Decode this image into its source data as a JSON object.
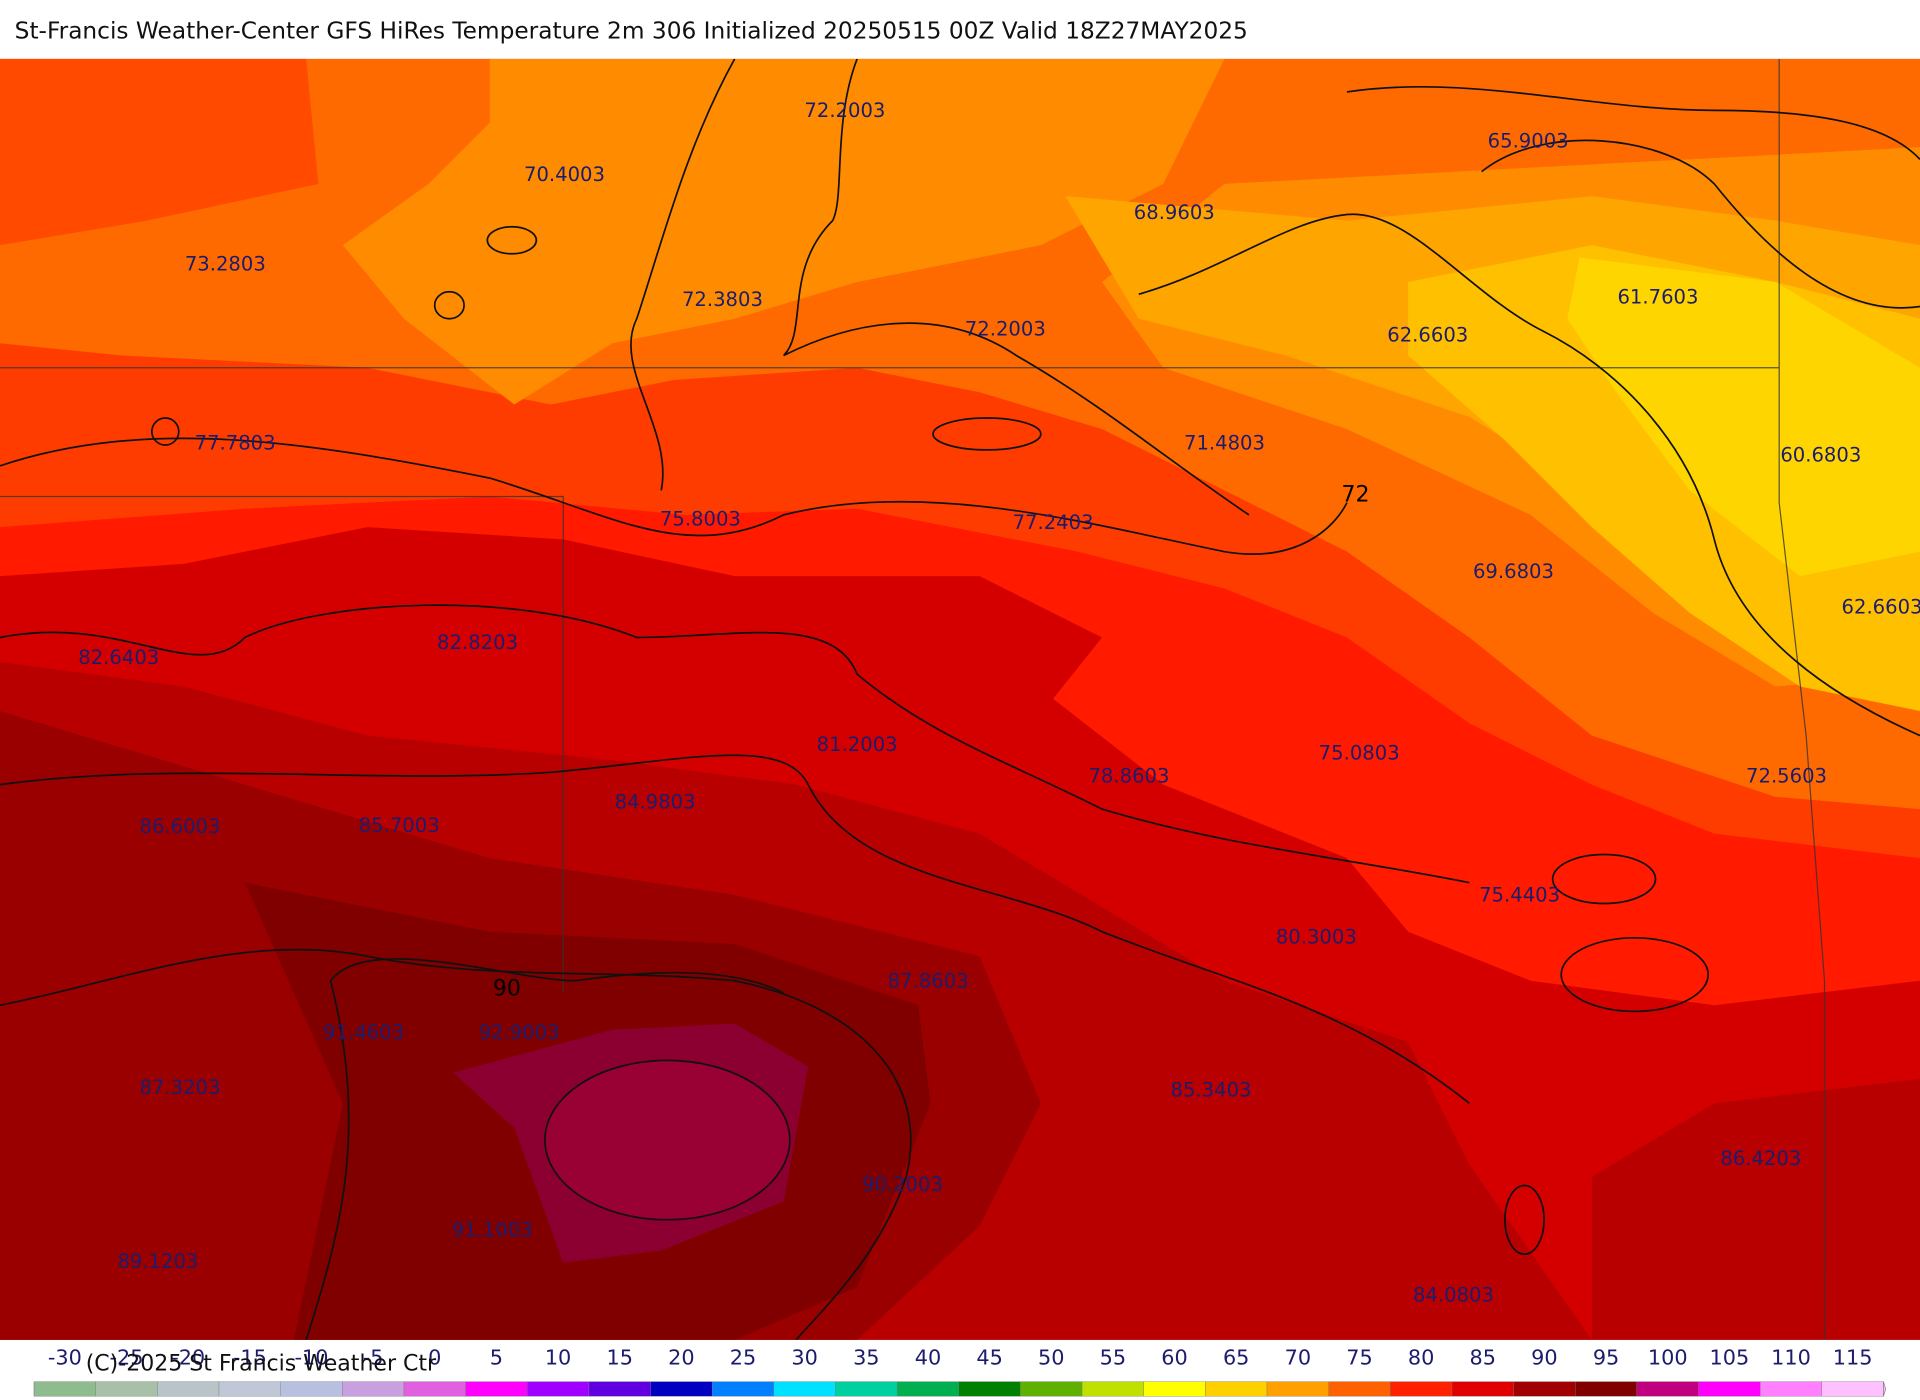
{
  "header": {
    "title": "St-Francis Weather-Center GFS HiRes Temperature 2m  306 Initialized 20250515 00Z Valid 18Z27MAY2025"
  },
  "map": {
    "labels": [
      "72.2003",
      "70.4003",
      "65.9003",
      "68.9603",
      "73.2803",
      "72.3803",
      "72.2003",
      "62.6603",
      "61.7603",
      "77.7803",
      "71.4803",
      "60.6803",
      "75.8003",
      "77.2403",
      "69.6803",
      "62.6603",
      "82.6403",
      "82.8203",
      "81.2003",
      "78.8603",
      "75.0803",
      "72.5603",
      "84.9803",
      "86.6003",
      "85.7003",
      "75.4403",
      "80.3003",
      "87.8603",
      "91.4603",
      "92.9003",
      "87.3203",
      "85.3403",
      "86.4203",
      "90.2003",
      "91.1003",
      "89.1203",
      "84.0803"
    ],
    "contour_labels": [
      "72",
      "90"
    ]
  },
  "colorbar": {
    "ticks": [
      -30,
      -25,
      -20,
      -15,
      -10,
      -5,
      0,
      5,
      10,
      15,
      20,
      25,
      30,
      35,
      40,
      45,
      50,
      55,
      60,
      65,
      70,
      75,
      80,
      85,
      90,
      95,
      100,
      105,
      110,
      115
    ]
  },
  "footer": {
    "copyright": "(C)-2025 St Francis Weather Ctr"
  }
}
